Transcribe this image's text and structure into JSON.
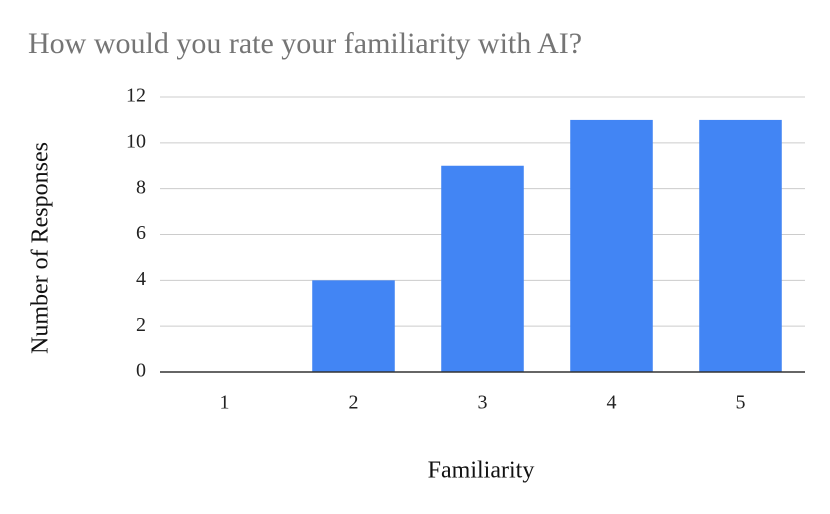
{
  "chart_data": {
    "type": "bar",
    "title": "How would you rate your familiarity with AI?",
    "x_label": "Familiarity",
    "y_label": "Number of Responses",
    "categories": [
      "1",
      "2",
      "3",
      "4",
      "5"
    ],
    "values": [
      0,
      4,
      9,
      11,
      11
    ],
    "color": "#4285f4",
    "ylim": [
      0,
      12
    ],
    "yticks": [
      0,
      2,
      4,
      6,
      8,
      10,
      12
    ],
    "grid": true
  }
}
